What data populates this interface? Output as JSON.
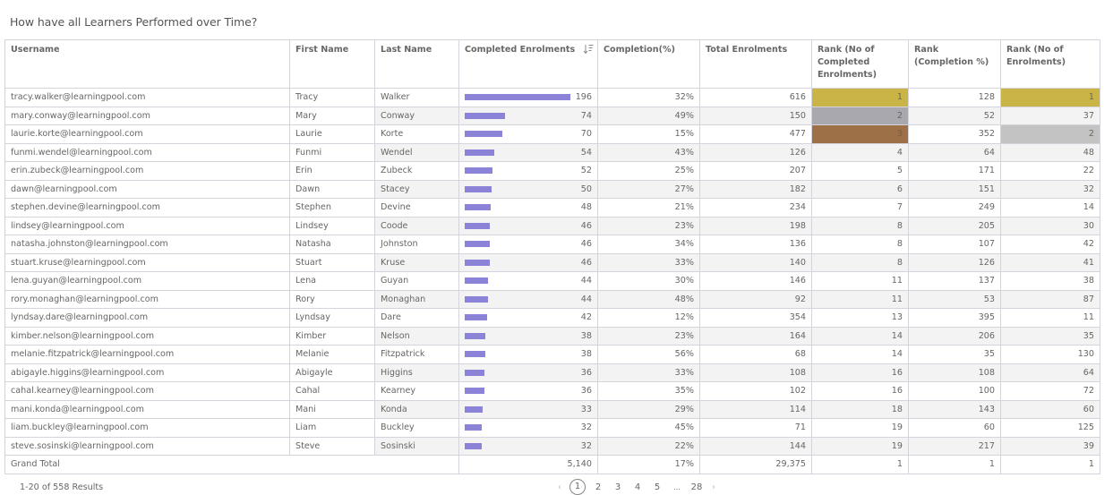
{
  "page_title": "How have all Learners Performed over Time?",
  "columns": [
    "Username",
    "First Name",
    "Last Name",
    "Completed Enrolments",
    "Completion(%)",
    "Total Enrolments",
    "Rank (No of Completed Enrolments)",
    "Rank (Completion %)",
    "Rank (No of Enrolments)"
  ],
  "sort": {
    "column": "Completed Enrolments",
    "direction": "descending",
    "icon": "sort-descending-icon"
  },
  "colors": {
    "bar": "#8a83d8",
    "rank_gold": "#c9b445",
    "rank_silver": "#a9a8ae",
    "rank_bronze": "#9d7047",
    "rank_grey": "#c3c3c3",
    "stripe": "#f3f3f3"
  },
  "bar_max": 196,
  "rows": [
    {
      "username": "tracy.walker@learningpool.com",
      "first": "Tracy",
      "last": "Walker",
      "completed": 196,
      "completed_label": "196",
      "pct": "32%",
      "total": "616",
      "rank_completed": "1",
      "rank_pct": "128",
      "rank_enrol": "1",
      "hl_completed": "gold",
      "hl_enrol": "gold"
    },
    {
      "username": "mary.conway@learningpool.com",
      "first": "Mary",
      "last": "Conway",
      "completed": 74,
      "completed_label": "74",
      "pct": "49%",
      "total": "150",
      "rank_completed": "2",
      "rank_pct": "52",
      "rank_enrol": "37",
      "hl_completed": "silver",
      "hl_enrol": ""
    },
    {
      "username": "laurie.korte@learningpool.com",
      "first": "Laurie",
      "last": "Korte",
      "completed": 70,
      "completed_label": "70",
      "pct": "15%",
      "total": "477",
      "rank_completed": "3",
      "rank_pct": "352",
      "rank_enrol": "2",
      "hl_completed": "bronze",
      "hl_enrol": "grey"
    },
    {
      "username": "funmi.wendel@learningpool.com",
      "first": "Funmi",
      "last": "Wendel",
      "completed": 54,
      "completed_label": "54",
      "pct": "43%",
      "total": "126",
      "rank_completed": "4",
      "rank_pct": "64",
      "rank_enrol": "48",
      "hl_completed": "",
      "hl_enrol": ""
    },
    {
      "username": "erin.zubeck@learningpool.com",
      "first": "Erin",
      "last": "Zubeck",
      "completed": 52,
      "completed_label": "52",
      "pct": "25%",
      "total": "207",
      "rank_completed": "5",
      "rank_pct": "171",
      "rank_enrol": "22",
      "hl_completed": "",
      "hl_enrol": ""
    },
    {
      "username": "dawn@learningpool.com",
      "first": "Dawn",
      "last": "Stacey",
      "completed": 50,
      "completed_label": "50",
      "pct": "27%",
      "total": "182",
      "rank_completed": "6",
      "rank_pct": "151",
      "rank_enrol": "32",
      "hl_completed": "",
      "hl_enrol": ""
    },
    {
      "username": "stephen.devine@learningpool.com",
      "first": "Stephen",
      "last": "Devine",
      "completed": 48,
      "completed_label": "48",
      "pct": "21%",
      "total": "234",
      "rank_completed": "7",
      "rank_pct": "249",
      "rank_enrol": "14",
      "hl_completed": "",
      "hl_enrol": ""
    },
    {
      "username": "lindsey@learningpool.com",
      "first": "Lindsey",
      "last": "Coode",
      "completed": 46,
      "completed_label": "46",
      "pct": "23%",
      "total": "198",
      "rank_completed": "8",
      "rank_pct": "205",
      "rank_enrol": "30",
      "hl_completed": "",
      "hl_enrol": ""
    },
    {
      "username": "natasha.johnston@learningpool.com",
      "first": "Natasha",
      "last": "Johnston",
      "completed": 46,
      "completed_label": "46",
      "pct": "34%",
      "total": "136",
      "rank_completed": "8",
      "rank_pct": "107",
      "rank_enrol": "42",
      "hl_completed": "",
      "hl_enrol": ""
    },
    {
      "username": "stuart.kruse@learningpool.com",
      "first": "Stuart",
      "last": "Kruse",
      "completed": 46,
      "completed_label": "46",
      "pct": "33%",
      "total": "140",
      "rank_completed": "8",
      "rank_pct": "126",
      "rank_enrol": "41",
      "hl_completed": "",
      "hl_enrol": ""
    },
    {
      "username": "lena.guyan@learningpool.com",
      "first": "Lena",
      "last": "Guyan",
      "completed": 44,
      "completed_label": "44",
      "pct": "30%",
      "total": "146",
      "rank_completed": "11",
      "rank_pct": "137",
      "rank_enrol": "38",
      "hl_completed": "",
      "hl_enrol": ""
    },
    {
      "username": "rory.monaghan@learningpool.com",
      "first": "Rory",
      "last": "Monaghan",
      "completed": 44,
      "completed_label": "44",
      "pct": "48%",
      "total": "92",
      "rank_completed": "11",
      "rank_pct": "53",
      "rank_enrol": "87",
      "hl_completed": "",
      "hl_enrol": ""
    },
    {
      "username": "lyndsay.dare@learningpool.com",
      "first": "Lyndsay",
      "last": "Dare",
      "completed": 42,
      "completed_label": "42",
      "pct": "12%",
      "total": "354",
      "rank_completed": "13",
      "rank_pct": "395",
      "rank_enrol": "11",
      "hl_completed": "",
      "hl_enrol": ""
    },
    {
      "username": "kimber.nelson@learningpool.com",
      "first": "Kimber",
      "last": "Nelson",
      "completed": 38,
      "completed_label": "38",
      "pct": "23%",
      "total": "164",
      "rank_completed": "14",
      "rank_pct": "206",
      "rank_enrol": "35",
      "hl_completed": "",
      "hl_enrol": ""
    },
    {
      "username": "melanie.fitzpatrick@learningpool.com",
      "first": "Melanie",
      "last": "Fitzpatrick",
      "completed": 38,
      "completed_label": "38",
      "pct": "56%",
      "total": "68",
      "rank_completed": "14",
      "rank_pct": "35",
      "rank_enrol": "130",
      "hl_completed": "",
      "hl_enrol": ""
    },
    {
      "username": "abigayle.higgins@learningpool.com",
      "first": "Abigayle",
      "last": "Higgins",
      "completed": 36,
      "completed_label": "36",
      "pct": "33%",
      "total": "108",
      "rank_completed": "16",
      "rank_pct": "108",
      "rank_enrol": "64",
      "hl_completed": "",
      "hl_enrol": ""
    },
    {
      "username": "cahal.kearney@learningpool.com",
      "first": "Cahal",
      "last": "Kearney",
      "completed": 36,
      "completed_label": "36",
      "pct": "35%",
      "total": "102",
      "rank_completed": "16",
      "rank_pct": "100",
      "rank_enrol": "72",
      "hl_completed": "",
      "hl_enrol": ""
    },
    {
      "username": "mani.konda@learningpool.com",
      "first": "Mani",
      "last": "Konda",
      "completed": 33,
      "completed_label": "33",
      "pct": "29%",
      "total": "114",
      "rank_completed": "18",
      "rank_pct": "143",
      "rank_enrol": "60",
      "hl_completed": "",
      "hl_enrol": ""
    },
    {
      "username": "liam.buckley@learningpool.com",
      "first": "Liam",
      "last": "Buckley",
      "completed": 32,
      "completed_label": "32",
      "pct": "45%",
      "total": "71",
      "rank_completed": "19",
      "rank_pct": "60",
      "rank_enrol": "125",
      "hl_completed": "",
      "hl_enrol": ""
    },
    {
      "username": "steve.sosinski@learningpool.com",
      "first": "Steve",
      "last": "Sosinski",
      "completed": 32,
      "completed_label": "32",
      "pct": "22%",
      "total": "144",
      "rank_completed": "19",
      "rank_pct": "217",
      "rank_enrol": "39",
      "hl_completed": "",
      "hl_enrol": ""
    }
  ],
  "grand_total": {
    "label": "Grand Total",
    "completed": "5,140",
    "pct": "17%",
    "total": "29,375",
    "rank_completed": "1",
    "rank_pct": "1",
    "rank_enrol": "1"
  },
  "footer": {
    "results_text": "1-20 of 558 Results",
    "pagination": {
      "prev": "‹",
      "current": "1",
      "pages": [
        "2",
        "3",
        "4",
        "5"
      ],
      "ellipsis": "...",
      "last": "28",
      "next": "›"
    }
  }
}
